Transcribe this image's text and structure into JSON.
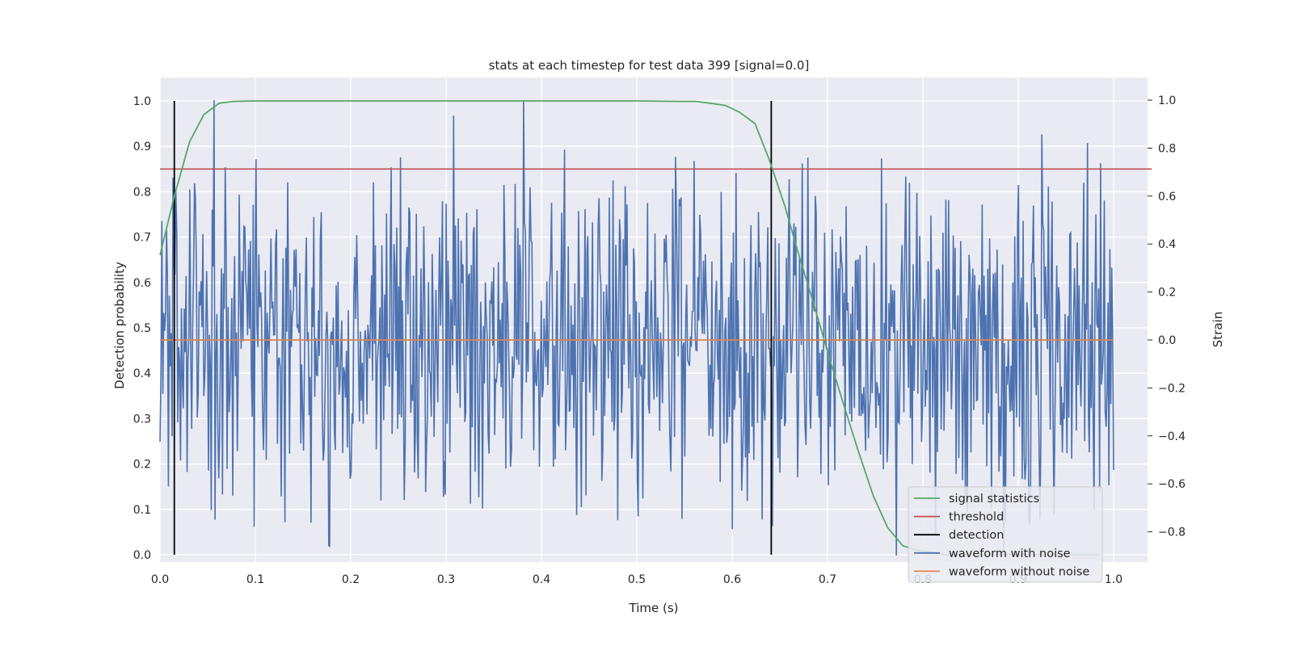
{
  "chart_data": {
    "type": "line",
    "title": "stats at each timestep for test data 399 [signal=0.0]",
    "xlabel": "Time (s)",
    "ylabel": "Detection probability",
    "ylabel_right": "Strain",
    "xlim": [
      0.0,
      1.05
    ],
    "ylim": [
      -0.048,
      1.048
    ],
    "ylim_right": [
      -0.98,
      1.09
    ],
    "grid": true,
    "background": "#eaeaf2",
    "x_ticks": [
      "0.0",
      "0.1",
      "0.2",
      "0.3",
      "0.4",
      "0.5",
      "0.6",
      "0.7",
      "0.8",
      "0.9",
      "1.0"
    ],
    "x_tick_values": [
      0.0,
      0.1,
      0.2,
      0.3,
      0.4,
      0.5,
      0.6,
      0.7,
      0.8,
      0.9,
      1.0
    ],
    "y_ticks": [
      "0.0",
      "0.1",
      "0.2",
      "0.3",
      "0.4",
      "0.5",
      "0.6",
      "0.7",
      "0.8",
      "0.9",
      "1.0"
    ],
    "y_tick_values": [
      0.0,
      0.1,
      0.2,
      0.3,
      0.4,
      0.5,
      0.6,
      0.7,
      0.8,
      0.9,
      1.0
    ],
    "y_right_ticks": [
      "−0.8",
      "−0.6",
      "−0.4",
      "−0.2",
      "0.0",
      "0.2",
      "0.4",
      "0.6",
      "0.8",
      "1.0"
    ],
    "y_right_tick_values": [
      -0.8,
      -0.6,
      -0.4,
      -0.2,
      0.0,
      0.2,
      0.4,
      0.6,
      0.8,
      1.0
    ],
    "legend_location": "lower right",
    "series": [
      {
        "name": "signal statistics",
        "color": "#55a868",
        "axis": "left",
        "x": [
          0.0,
          0.015,
          0.031,
          0.046,
          0.062,
          0.077,
          0.1,
          0.2,
          0.3,
          0.4,
          0.5,
          0.546,
          0.562,
          0.577,
          0.593,
          0.608,
          0.624,
          0.639,
          0.655,
          0.67,
          0.686,
          0.701,
          0.717,
          0.732,
          0.748,
          0.763,
          0.779,
          0.794,
          0.81,
          0.825,
          0.9,
          0.985
        ],
        "y": [
          0.66,
          0.79,
          0.91,
          0.97,
          0.995,
          0.999,
          1.0,
          1.0,
          1.0,
          1.0,
          1.0,
          0.999,
          0.999,
          0.995,
          0.99,
          0.975,
          0.95,
          0.87,
          0.77,
          0.66,
          0.55,
          0.44,
          0.33,
          0.23,
          0.13,
          0.06,
          0.02,
          0.01,
          0.005,
          0.0,
          0.0,
          0.0
        ]
      },
      {
        "name": "threshold",
        "color": "#c44e52",
        "axis": "left",
        "x": [
          0.0,
          1.04
        ],
        "y": [
          0.85,
          0.85
        ]
      },
      {
        "name": "detection",
        "color": "#000000",
        "axis": "left",
        "x": [
          0.015,
          0.641
        ],
        "y": [
          0.0,
          1.0
        ]
      },
      {
        "name": "waveform with noise",
        "color": "#4c72b0",
        "axis": "right",
        "x_range": [
          0.0,
          1.0
        ],
        "y_range": [
          -0.9,
          1.0
        ],
        "sample_points": 1024
      },
      {
        "name": "waveform without noise",
        "color": "#dd8452",
        "axis": "right",
        "x": [
          0.0,
          1.0
        ],
        "y": [
          0.0,
          0.0
        ]
      }
    ]
  }
}
